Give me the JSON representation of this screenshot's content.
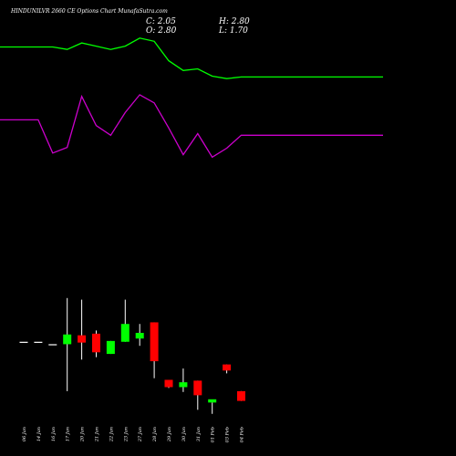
{
  "title": "HINDUNILVR 2660 CE Options Chart MunafaSutra.com",
  "ohlc": {
    "c": "C: 2.05",
    "h": "H: 2.80",
    "o": "O: 2.80",
    "l": "L: 1.70"
  },
  "colors": {
    "up": "#00ff00",
    "down": "#ff0000",
    "line_upper": "#00ff00",
    "line_lower": "#cc00cc",
    "background": "#000000",
    "flat": "#ffffff"
  },
  "chart_data": [
    {
      "type": "candlestick",
      "categories": [
        "06 Jan",
        "14 Jan",
        "16 Jan",
        "17 Jan",
        "20 Jan",
        "21 Jan",
        "22 Jan",
        "23 Jan",
        "27 Jan",
        "28 Jan",
        "29 Jan",
        "30 Jan",
        "31 Jan",
        "01 Feb",
        "03 Feb",
        "04 Feb"
      ],
      "candles": [
        {
          "open": 5.6,
          "high": 5.6,
          "low": 5.6,
          "close": 5.6
        },
        {
          "open": 5.6,
          "high": 5.6,
          "low": 5.6,
          "close": 5.6
        },
        {
          "open": 5.3,
          "high": 5.3,
          "low": 5.3,
          "close": 5.3
        },
        {
          "open": 5.3,
          "high": 11.0,
          "low": -0.5,
          "close": 6.5
        },
        {
          "open": 6.4,
          "high": 10.8,
          "low": 3.4,
          "close": 5.5
        },
        {
          "open": 6.6,
          "high": 7.0,
          "low": 3.7,
          "close": 4.3
        },
        {
          "open": 4.1,
          "high": 5.7,
          "low": 4.1,
          "close": 5.7
        },
        {
          "open": 5.6,
          "high": 10.8,
          "low": 5.6,
          "close": 7.8
        },
        {
          "open": 6.0,
          "high": 7.8,
          "low": 5.1,
          "close": 6.7
        },
        {
          "open": 8.0,
          "high": 8.0,
          "low": 1.1,
          "close": 3.2
        },
        {
          "open": 0.9,
          "high": 0.9,
          "low": -0.1,
          "close": 0.0
        },
        {
          "open": 0.0,
          "high": 2.3,
          "low": -0.6,
          "close": 0.6
        },
        {
          "open": 0.8,
          "high": 0.8,
          "low": -2.8,
          "close": -1.0
        },
        {
          "open": -1.9,
          "high": -1.9,
          "low": -3.3,
          "close": -1.5
        },
        {
          "open": 2.8,
          "high": 2.8,
          "low": 1.7,
          "close": 2.05
        },
        {
          "open": -0.5,
          "high": -0.5,
          "low": -1.7,
          "close": -1.7
        }
      ],
      "upper_line": [
        42.0,
        42.0,
        42.0,
        41.7,
        42.5,
        42.1,
        41.7,
        42.1,
        43.1,
        42.7,
        40.3,
        39.1,
        39.3,
        38.4,
        38.1,
        38.3
      ],
      "lower_line": [
        33.0,
        33.0,
        28.9,
        29.6,
        35.9,
        32.3,
        31.1,
        33.9,
        36.1,
        35.1,
        32.0,
        28.7,
        31.3,
        28.4,
        29.5,
        31.1
      ],
      "ylim": [
        -4,
        46
      ]
    }
  ]
}
